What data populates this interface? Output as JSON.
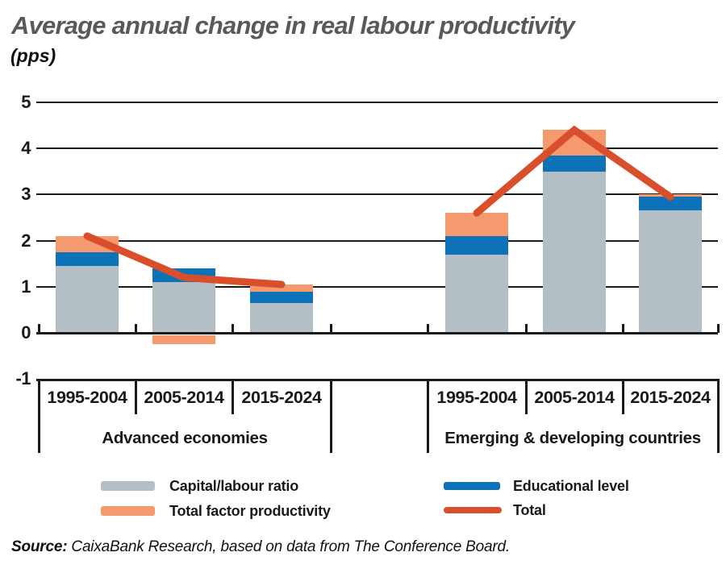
{
  "header": {
    "title": "Average annual change in real labour productivity",
    "unit": "(pps)"
  },
  "colors": {
    "capital": "#b3bec5",
    "educational": "#0e72b8",
    "tfp": "#f49a6e",
    "total": "#d94f2b",
    "title": "#58595b",
    "axis": "#1a1a1a"
  },
  "chart_data": {
    "type": "bar",
    "stacked": true,
    "overlay_line_series": "Total",
    "title": "Average annual change in real labour productivity",
    "ylabel": "(pps)",
    "ylim": [
      -1,
      5
    ],
    "y_ticks": [
      5,
      4,
      3,
      2,
      1,
      0,
      -1
    ],
    "grid": "horizontal",
    "groups": [
      {
        "label": "Advanced economies",
        "periods": [
          "1995-2004",
          "2005-2014",
          "2015-2024"
        ]
      },
      {
        "label": "Emerging & developing countries",
        "periods": [
          "1995-2004",
          "2005-2014",
          "2015-2024"
        ]
      }
    ],
    "categories": [
      "Advanced economies 1995-2004",
      "Advanced economies 2005-2014",
      "Advanced economies 2015-2024",
      "Emerging & developing countries 1995-2004",
      "Emerging & developing countries 2005-2014",
      "Emerging & developing countries 2015-2024"
    ],
    "series": [
      {
        "name": "Capital/labour ratio",
        "type": "bar",
        "values": [
          1.45,
          1.1,
          0.65,
          1.7,
          3.5,
          2.65
        ]
      },
      {
        "name": "Educational level",
        "type": "bar",
        "values": [
          0.3,
          0.3,
          0.25,
          0.4,
          0.35,
          0.3
        ]
      },
      {
        "name": "Total factor productivity",
        "type": "bar",
        "values": [
          0.35,
          -0.25,
          0.15,
          0.5,
          0.55,
          0.05
        ]
      },
      {
        "name": "Total",
        "type": "line",
        "values": [
          2.1,
          1.2,
          1.05,
          2.6,
          4.4,
          2.95
        ]
      }
    ]
  },
  "legend": {
    "items": [
      {
        "label": "Capital/labour ratio",
        "color_key": "capital",
        "shape": "rect"
      },
      {
        "label": "Total factor productivity",
        "color_key": "tfp",
        "shape": "rect"
      },
      {
        "label": "Educational level",
        "color_key": "educational",
        "shape": "rect"
      },
      {
        "label": "Total",
        "color_key": "total",
        "shape": "line"
      }
    ]
  },
  "source": {
    "prefix": "Source:",
    "text": " CaixaBank Research, based on data from The Conference Board."
  }
}
